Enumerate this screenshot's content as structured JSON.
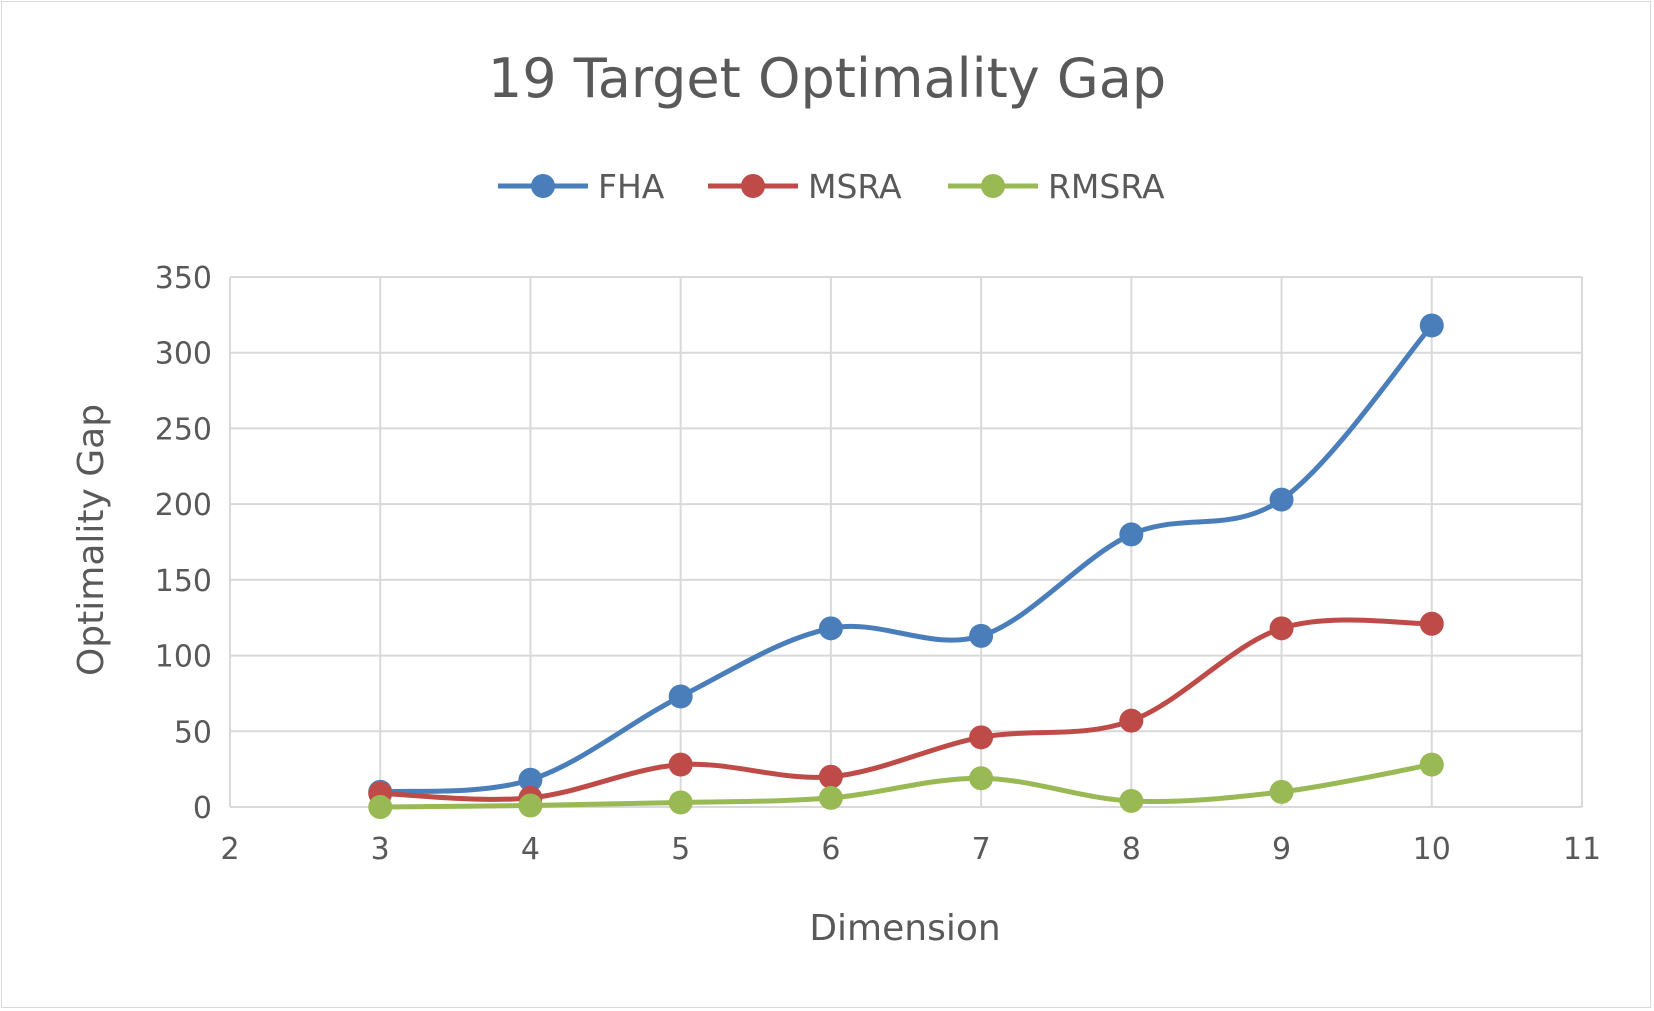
{
  "chart_data": {
    "type": "line",
    "smooth": true,
    "title": "19 Target Optimality Gap",
    "xlabel": "Dimension",
    "ylabel": "Optimality Gap",
    "xlim": [
      2,
      11
    ],
    "ylim": [
      0,
      350
    ],
    "xticks": [
      "2",
      "3",
      "4",
      "5",
      "6",
      "7",
      "8",
      "9",
      "10",
      "11"
    ],
    "yticks": [
      "0",
      "50",
      "100",
      "150",
      "200",
      "250",
      "300",
      "350"
    ],
    "grid": true,
    "legend_position": "top",
    "x": [
      3,
      4,
      5,
      6,
      7,
      8,
      9,
      10
    ],
    "series": [
      {
        "name": "FHA",
        "color": "#4a7ebb",
        "values": [
          10,
          18,
          73,
          118,
          113,
          180,
          203,
          318
        ]
      },
      {
        "name": "MSRA",
        "color": "#be4b48",
        "values": [
          9,
          6,
          28,
          20,
          46,
          57,
          118,
          121
        ]
      },
      {
        "name": "RMSRA",
        "color": "#98b954",
        "values": [
          0,
          1,
          3,
          6,
          19,
          4,
          10,
          28
        ]
      }
    ]
  }
}
